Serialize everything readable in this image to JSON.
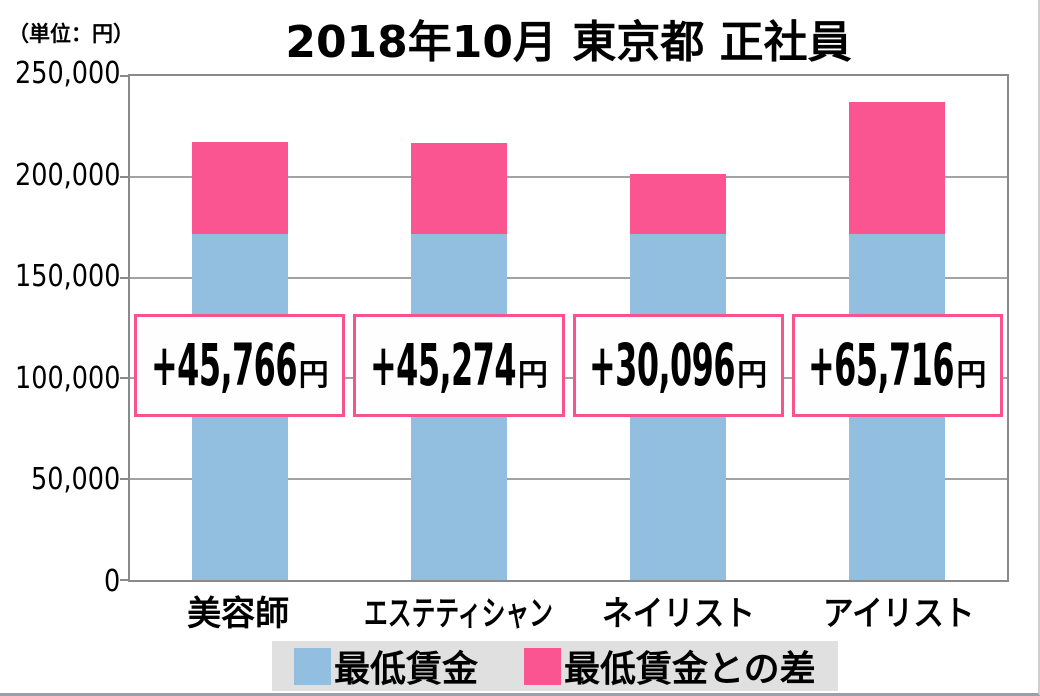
{
  "page": {
    "unit_label": "（単位：円）",
    "title": "2018年10月 東京都 正社員"
  },
  "colors": {
    "bar_blue": "#92bfdf",
    "bar_pink": "#fb5591",
    "plot_border": "#8a8a8a",
    "gridline": "#a3a3a3",
    "label_box_border": "#f9538e",
    "label_box_bg": "#fefefe",
    "legend_bg": "#e0e0e0",
    "text": "#000000"
  },
  "legend": {
    "items": [
      {
        "label": "最低賃金",
        "color": "#92bfdf"
      },
      {
        "label": "最低賃金との差",
        "color": "#fb5591"
      }
    ]
  },
  "chart_data": {
    "type": "bar",
    "stacked": true,
    "title": "2018年10月 東京都 正社員",
    "unit_label": "（単位：円）",
    "categories": [
      "美容師",
      "エステティシャン",
      "ネイリスト",
      "アイリスト"
    ],
    "series": [
      {
        "name": "最低賃金",
        "color": "#92bfdf",
        "values": [
          171390,
          171390,
          171390,
          171390
        ]
      },
      {
        "name": "最低賃金との差",
        "color": "#fb5591",
        "values": [
          45766,
          45274,
          30096,
          65716
        ]
      }
    ],
    "bar_value_labels": [
      "+45,766",
      "+45,274",
      "+30,096",
      "+65,716"
    ],
    "bar_value_unit": "円",
    "totals": [
      217156,
      216664,
      201486,
      237106
    ],
    "ylim": [
      0,
      250000
    ],
    "ytick_interval": 50000,
    "yticks": [
      "250,000",
      "200,000",
      "150,000",
      "100,000",
      "50,000",
      "0"
    ],
    "grid": "horizontal",
    "legend_position": "bottom",
    "category_label_scale": [
      1,
      0.7,
      0.9,
      0.9
    ]
  }
}
